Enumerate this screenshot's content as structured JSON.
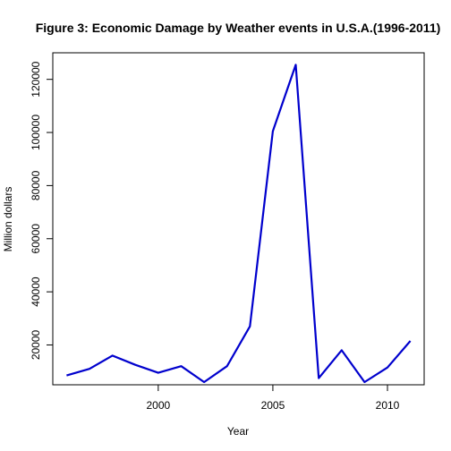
{
  "chart_data": {
    "type": "line",
    "title": "Figure 3: Economic Damage by Weather events in U.S.A.(1996-2011)",
    "xlabel": "Year",
    "ylabel": "Million dollars",
    "x": [
      1996,
      1997,
      1998,
      1999,
      2000,
      2001,
      2002,
      2003,
      2004,
      2005,
      2006,
      2007,
      2008,
      2009,
      2010,
      2011
    ],
    "series": [
      {
        "values": [
          8500,
          11000,
          16000,
          12500,
          9500,
          12000,
          6000,
          12000,
          27000,
          100500,
          125500,
          7500,
          18000,
          6000,
          11500,
          21500
        ],
        "color": "#0000cd"
      }
    ],
    "xlim": [
      1995.4,
      2011.6
    ],
    "ylim": [
      5000,
      130000
    ],
    "xticks": [
      2000,
      2005,
      2010
    ],
    "yticks": [
      20000,
      40000,
      60000,
      80000,
      100000,
      120000
    ],
    "grid": false,
    "legend": "none"
  }
}
